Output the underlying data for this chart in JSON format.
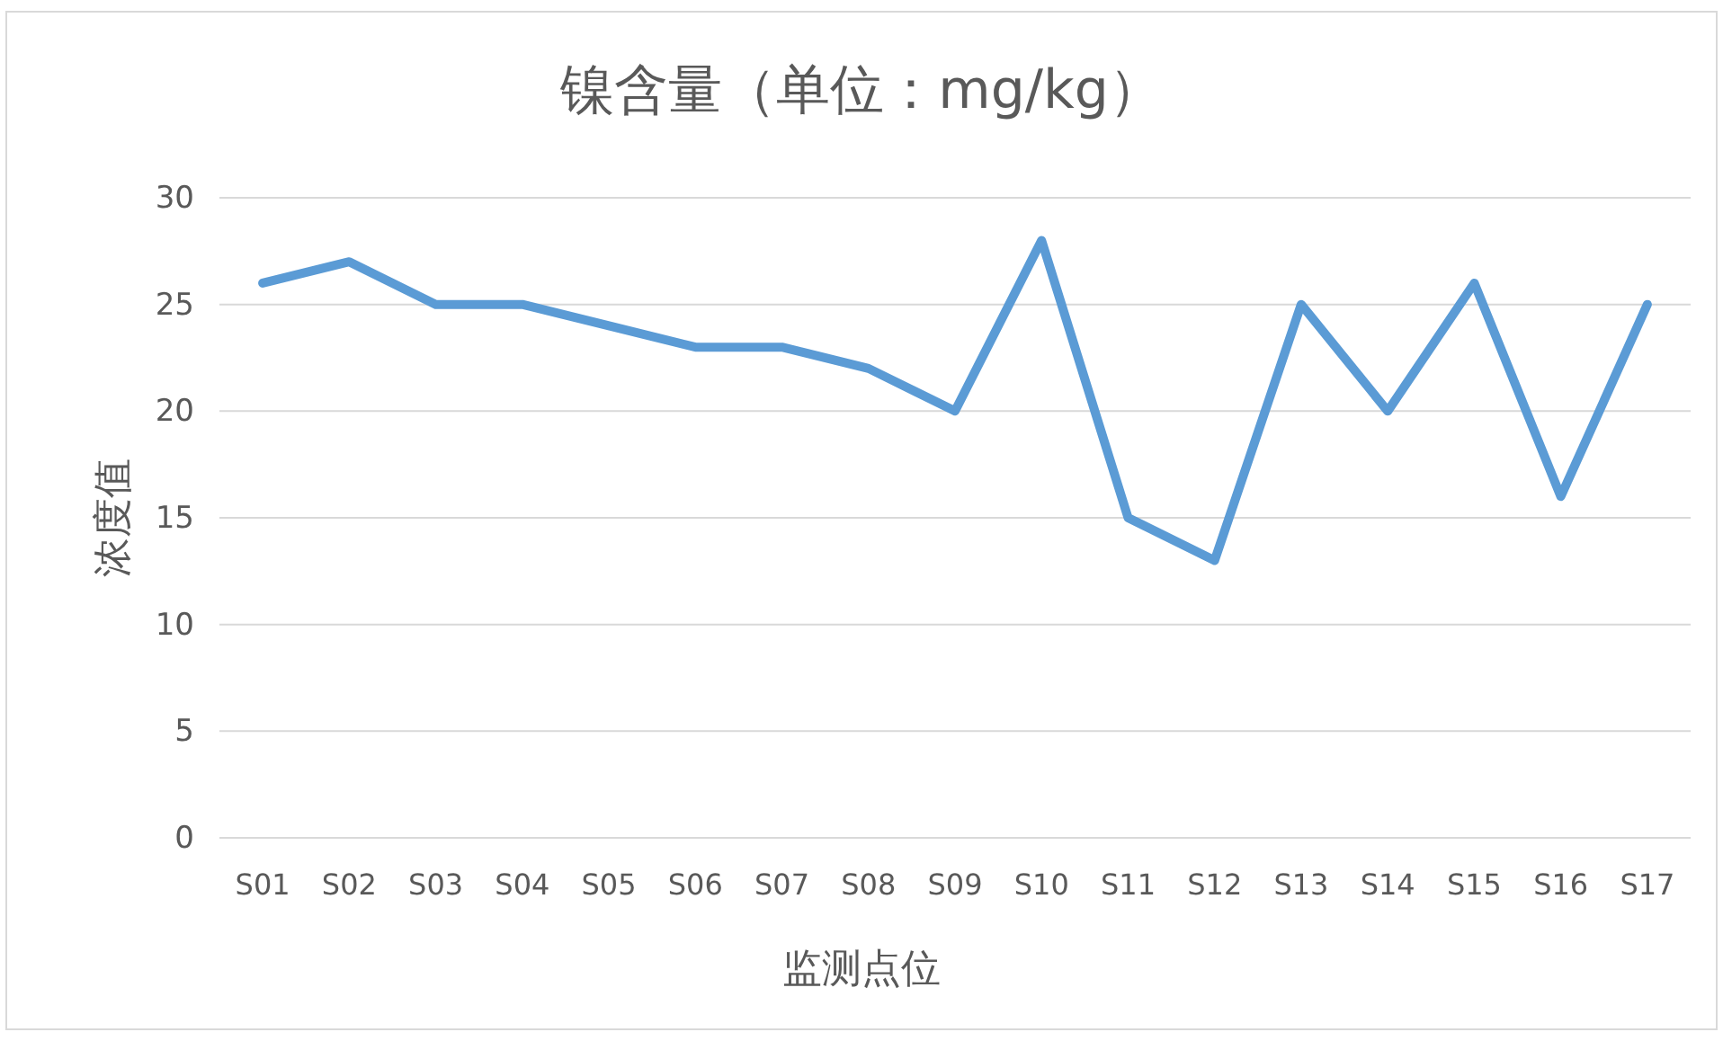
{
  "chart_data": {
    "type": "line",
    "title": "镍含量（单位：mg/kg）",
    "xlabel": "监测点位",
    "ylabel": "浓度值",
    "categories": [
      "S01",
      "S02",
      "S03",
      "S04",
      "S05",
      "S06",
      "S07",
      "S08",
      "S09",
      "S10",
      "S11",
      "S12",
      "S13",
      "S14",
      "S15",
      "S16",
      "S17"
    ],
    "series": [
      {
        "color": "#5b9bd5",
        "values": [
          26,
          27,
          25,
          25,
          24,
          23,
          23,
          22,
          20,
          28,
          15,
          13,
          25,
          20,
          26,
          16,
          25
        ]
      }
    ],
    "ylim": [
      0,
      30
    ],
    "yticks": [
      0,
      5,
      10,
      15,
      20,
      25,
      30
    ],
    "grid": "y",
    "legend": false,
    "marker": "none",
    "line_style": "solid"
  }
}
